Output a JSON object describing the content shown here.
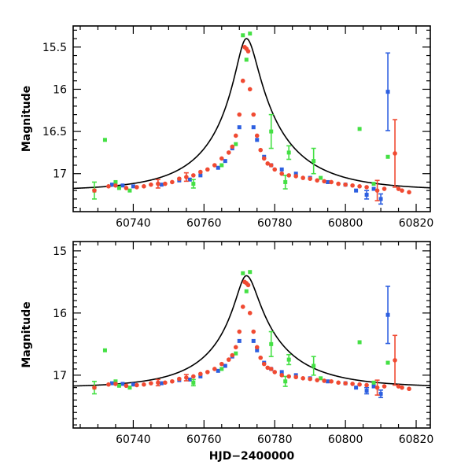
{
  "chart_data": [
    {
      "type": "scatter",
      "title": "",
      "xlabel": "",
      "ylabel": "Magnitude",
      "xlim": [
        60723,
        60824
      ],
      "ylim": [
        17.45,
        15.25
      ],
      "y_inverted": true,
      "xticks": [
        60740,
        60760,
        60780,
        60800,
        60820
      ],
      "xtick_labels": [
        "60740",
        "60760",
        "60780",
        "60800",
        "60820"
      ],
      "yticks": [
        15.5,
        16,
        16.5,
        17
      ],
      "ytick_labels": [
        "15.5",
        "16",
        "16.5",
        "17"
      ],
      "model_curve": {
        "baseline": 17.2,
        "peak_mag": 15.4,
        "t0": 60772,
        "tE_left": 21,
        "tE_right": 24,
        "u0": 0.13
      },
      "series": [
        {
          "color": "#2d5fe0",
          "marker": "square",
          "points": [
            {
              "x": 60734,
              "y": 17.13
            },
            {
              "x": 60737,
              "y": 17.14
            },
            {
              "x": 60740,
              "y": 17.15
            },
            {
              "x": 60748,
              "y": 17.13
            },
            {
              "x": 60753,
              "y": 17.08
            },
            {
              "x": 60756,
              "y": 17.07
            },
            {
              "x": 60759,
              "y": 17.02
            },
            {
              "x": 60764,
              "y": 16.93
            },
            {
              "x": 60766,
              "y": 16.85
            },
            {
              "x": 60768,
              "y": 16.7
            },
            {
              "x": 60770,
              "y": 16.45
            },
            {
              "x": 60774,
              "y": 16.45
            },
            {
              "x": 60775,
              "y": 16.6
            },
            {
              "x": 60777,
              "y": 16.8
            },
            {
              "x": 60779,
              "y": 16.9
            },
            {
              "x": 60782,
              "y": 16.95
            },
            {
              "x": 60786,
              "y": 17.0
            },
            {
              "x": 60790,
              "y": 17.05
            },
            {
              "x": 60795,
              "y": 17.1
            },
            {
              "x": 60800,
              "y": 17.13
            },
            {
              "x": 60803,
              "y": 17.2
            },
            {
              "x": 60806,
              "y": 17.25,
              "err": 0.05
            },
            {
              "x": 60808,
              "y": 17.18
            },
            {
              "x": 60810,
              "y": 17.3,
              "err": 0.06
            },
            {
              "x": 60812,
              "y": 16.03,
              "err": 0.46
            }
          ]
        },
        {
          "color": "#44e044",
          "marker": "square",
          "points": [
            {
              "x": 60729,
              "y": 17.2,
              "err": 0.1
            },
            {
              "x": 60732,
              "y": 16.6
            },
            {
              "x": 60735,
              "y": 17.1
            },
            {
              "x": 60736,
              "y": 17.17
            },
            {
              "x": 60739,
              "y": 17.2
            },
            {
              "x": 60757,
              "y": 17.12,
              "err": 0.05
            },
            {
              "x": 60765,
              "y": 16.9
            },
            {
              "x": 60769,
              "y": 16.65
            },
            {
              "x": 60771,
              "y": 15.36
            },
            {
              "x": 60772,
              "y": 15.65
            },
            {
              "x": 60773,
              "y": 15.34
            },
            {
              "x": 60779,
              "y": 16.5,
              "err": 0.2
            },
            {
              "x": 60783,
              "y": 17.1,
              "err": 0.08
            },
            {
              "x": 60784,
              "y": 16.75,
              "err": 0.08
            },
            {
              "x": 60791,
              "y": 16.85,
              "err": 0.15
            },
            {
              "x": 60793,
              "y": 17.05
            },
            {
              "x": 60804,
              "y": 16.47
            },
            {
              "x": 60808,
              "y": 17.12
            },
            {
              "x": 60812,
              "y": 16.8
            }
          ]
        },
        {
          "color": "#f04a32",
          "marker": "circle",
          "points": [
            {
              "x": 60729,
              "y": 17.2
            },
            {
              "x": 60733,
              "y": 17.15
            },
            {
              "x": 60735,
              "y": 17.14
            },
            {
              "x": 60738,
              "y": 17.17
            },
            {
              "x": 60741,
              "y": 17.16
            },
            {
              "x": 60743,
              "y": 17.15
            },
            {
              "x": 60745,
              "y": 17.13
            },
            {
              "x": 60747,
              "y": 17.12,
              "err": 0.05
            },
            {
              "x": 60749,
              "y": 17.12
            },
            {
              "x": 60751,
              "y": 17.1
            },
            {
              "x": 60753,
              "y": 17.06
            },
            {
              "x": 60755,
              "y": 17.04,
              "err": 0.05
            },
            {
              "x": 60757,
              "y": 17.02
            },
            {
              "x": 60759,
              "y": 16.98
            },
            {
              "x": 60761,
              "y": 16.95
            },
            {
              "x": 60763,
              "y": 16.9
            },
            {
              "x": 60765,
              "y": 16.82
            },
            {
              "x": 60767,
              "y": 16.75
            },
            {
              "x": 60768,
              "y": 16.68
            },
            {
              "x": 60769,
              "y": 16.55
            },
            {
              "x": 60770,
              "y": 16.3
            },
            {
              "x": 60771,
              "y": 15.9
            },
            {
              "x": 60771.5,
              "y": 15.5
            },
            {
              "x": 60772,
              "y": 15.52
            },
            {
              "x": 60772.5,
              "y": 15.55
            },
            {
              "x": 60773,
              "y": 16.0
            },
            {
              "x": 60774,
              "y": 16.3
            },
            {
              "x": 60775,
              "y": 16.55
            },
            {
              "x": 60776,
              "y": 16.72
            },
            {
              "x": 60777,
              "y": 16.82
            },
            {
              "x": 60778,
              "y": 16.88
            },
            {
              "x": 60779,
              "y": 16.9
            },
            {
              "x": 60780,
              "y": 16.95
            },
            {
              "x": 60782,
              "y": 17.0
            },
            {
              "x": 60784,
              "y": 17.02
            },
            {
              "x": 60786,
              "y": 17.03
            },
            {
              "x": 60788,
              "y": 17.05
            },
            {
              "x": 60790,
              "y": 17.06
            },
            {
              "x": 60792,
              "y": 17.08
            },
            {
              "x": 60794,
              "y": 17.09
            },
            {
              "x": 60796,
              "y": 17.1
            },
            {
              "x": 60798,
              "y": 17.12
            },
            {
              "x": 60800,
              "y": 17.13
            },
            {
              "x": 60802,
              "y": 17.14
            },
            {
              "x": 60804,
              "y": 17.15
            },
            {
              "x": 60806,
              "y": 17.16
            },
            {
              "x": 60809,
              "y": 17.2,
              "err": 0.12
            },
            {
              "x": 60811,
              "y": 17.18
            },
            {
              "x": 60814,
              "y": 16.76,
              "err": 0.4
            },
            {
              "x": 60815,
              "y": 17.18
            },
            {
              "x": 60816,
              "y": 17.2
            },
            {
              "x": 60818,
              "y": 17.22
            }
          ]
        }
      ]
    },
    {
      "type": "scatter",
      "title": "",
      "xlabel": "HJD−2400000",
      "ylabel": "Magnitude",
      "xlim": [
        60723,
        60824
      ],
      "ylim": [
        17.85,
        14.85
      ],
      "y_inverted": true,
      "xticks": [
        60740,
        60760,
        60780,
        60800,
        60820
      ],
      "xtick_labels": [
        "60740",
        "60760",
        "60780",
        "60800",
        "60820"
      ],
      "yticks": [
        15,
        16,
        17
      ],
      "ytick_labels": [
        "15",
        "16",
        "17"
      ],
      "model_curve": {
        "baseline": 17.2,
        "peak_mag": 15.4,
        "t0": 60772,
        "tE_left": 21,
        "tE_right": 24,
        "u0": 0.13
      },
      "series": [
        {
          "color": "#2d5fe0",
          "marker": "square",
          "points": [
            {
              "x": 60734,
              "y": 17.13
            },
            {
              "x": 60737,
              "y": 17.14
            },
            {
              "x": 60740,
              "y": 17.15
            },
            {
              "x": 60748,
              "y": 17.13
            },
            {
              "x": 60753,
              "y": 17.08
            },
            {
              "x": 60756,
              "y": 17.07
            },
            {
              "x": 60759,
              "y": 17.02
            },
            {
              "x": 60764,
              "y": 16.93
            },
            {
              "x": 60766,
              "y": 16.85
            },
            {
              "x": 60768,
              "y": 16.7
            },
            {
              "x": 60770,
              "y": 16.45
            },
            {
              "x": 60774,
              "y": 16.45
            },
            {
              "x": 60775,
              "y": 16.6
            },
            {
              "x": 60777,
              "y": 16.8
            },
            {
              "x": 60779,
              "y": 16.9
            },
            {
              "x": 60782,
              "y": 16.95
            },
            {
              "x": 60786,
              "y": 17.0
            },
            {
              "x": 60790,
              "y": 17.05
            },
            {
              "x": 60795,
              "y": 17.1
            },
            {
              "x": 60800,
              "y": 17.13
            },
            {
              "x": 60803,
              "y": 17.2
            },
            {
              "x": 60806,
              "y": 17.25,
              "err": 0.05
            },
            {
              "x": 60808,
              "y": 17.18
            },
            {
              "x": 60810,
              "y": 17.3,
              "err": 0.06
            },
            {
              "x": 60812,
              "y": 16.03,
              "err": 0.46
            }
          ]
        },
        {
          "color": "#44e044",
          "marker": "square",
          "points": [
            {
              "x": 60729,
              "y": 17.2,
              "err": 0.1
            },
            {
              "x": 60732,
              "y": 16.6
            },
            {
              "x": 60735,
              "y": 17.1
            },
            {
              "x": 60736,
              "y": 17.17
            },
            {
              "x": 60739,
              "y": 17.2
            },
            {
              "x": 60757,
              "y": 17.12,
              "err": 0.05
            },
            {
              "x": 60765,
              "y": 16.9
            },
            {
              "x": 60769,
              "y": 16.65
            },
            {
              "x": 60771,
              "y": 15.36
            },
            {
              "x": 60772,
              "y": 15.65
            },
            {
              "x": 60773,
              "y": 15.34
            },
            {
              "x": 60779,
              "y": 16.5,
              "err": 0.2
            },
            {
              "x": 60783,
              "y": 17.1,
              "err": 0.08
            },
            {
              "x": 60784,
              "y": 16.75,
              "err": 0.08
            },
            {
              "x": 60791,
              "y": 16.85,
              "err": 0.15
            },
            {
              "x": 60793,
              "y": 17.05
            },
            {
              "x": 60804,
              "y": 16.47
            },
            {
              "x": 60808,
              "y": 17.12
            },
            {
              "x": 60812,
              "y": 16.8
            }
          ]
        },
        {
          "color": "#f04a32",
          "marker": "circle",
          "points": [
            {
              "x": 60729,
              "y": 17.2
            },
            {
              "x": 60733,
              "y": 17.15
            },
            {
              "x": 60735,
              "y": 17.14
            },
            {
              "x": 60738,
              "y": 17.17
            },
            {
              "x": 60741,
              "y": 17.16
            },
            {
              "x": 60743,
              "y": 17.15
            },
            {
              "x": 60745,
              "y": 17.13
            },
            {
              "x": 60747,
              "y": 17.12,
              "err": 0.05
            },
            {
              "x": 60749,
              "y": 17.12
            },
            {
              "x": 60751,
              "y": 17.1
            },
            {
              "x": 60753,
              "y": 17.06
            },
            {
              "x": 60755,
              "y": 17.04,
              "err": 0.05
            },
            {
              "x": 60757,
              "y": 17.02
            },
            {
              "x": 60759,
              "y": 16.98
            },
            {
              "x": 60761,
              "y": 16.95
            },
            {
              "x": 60763,
              "y": 16.9
            },
            {
              "x": 60765,
              "y": 16.82
            },
            {
              "x": 60767,
              "y": 16.75
            },
            {
              "x": 60768,
              "y": 16.68
            },
            {
              "x": 60769,
              "y": 16.55
            },
            {
              "x": 60770,
              "y": 16.3
            },
            {
              "x": 60771,
              "y": 15.9
            },
            {
              "x": 60771.5,
              "y": 15.5
            },
            {
              "x": 60772,
              "y": 15.52
            },
            {
              "x": 60772.5,
              "y": 15.55
            },
            {
              "x": 60773,
              "y": 16.0
            },
            {
              "x": 60774,
              "y": 16.3
            },
            {
              "x": 60775,
              "y": 16.55
            },
            {
              "x": 60776,
              "y": 16.72
            },
            {
              "x": 60777,
              "y": 16.82
            },
            {
              "x": 60778,
              "y": 16.88
            },
            {
              "x": 60779,
              "y": 16.9
            },
            {
              "x": 60780,
              "y": 16.95
            },
            {
              "x": 60782,
              "y": 17.0
            },
            {
              "x": 60784,
              "y": 17.02
            },
            {
              "x": 60786,
              "y": 17.03
            },
            {
              "x": 60788,
              "y": 17.05
            },
            {
              "x": 60790,
              "y": 17.06
            },
            {
              "x": 60792,
              "y": 17.08
            },
            {
              "x": 60794,
              "y": 17.09
            },
            {
              "x": 60796,
              "y": 17.1
            },
            {
              "x": 60798,
              "y": 17.12
            },
            {
              "x": 60800,
              "y": 17.13
            },
            {
              "x": 60802,
              "y": 17.14
            },
            {
              "x": 60804,
              "y": 17.15
            },
            {
              "x": 60806,
              "y": 17.16
            },
            {
              "x": 60809,
              "y": 17.2,
              "err": 0.12
            },
            {
              "x": 60811,
              "y": 17.18
            },
            {
              "x": 60814,
              "y": 16.76,
              "err": 0.4
            },
            {
              "x": 60815,
              "y": 17.18
            },
            {
              "x": 60816,
              "y": 17.2
            },
            {
              "x": 60818,
              "y": 17.22
            }
          ]
        }
      ]
    }
  ]
}
